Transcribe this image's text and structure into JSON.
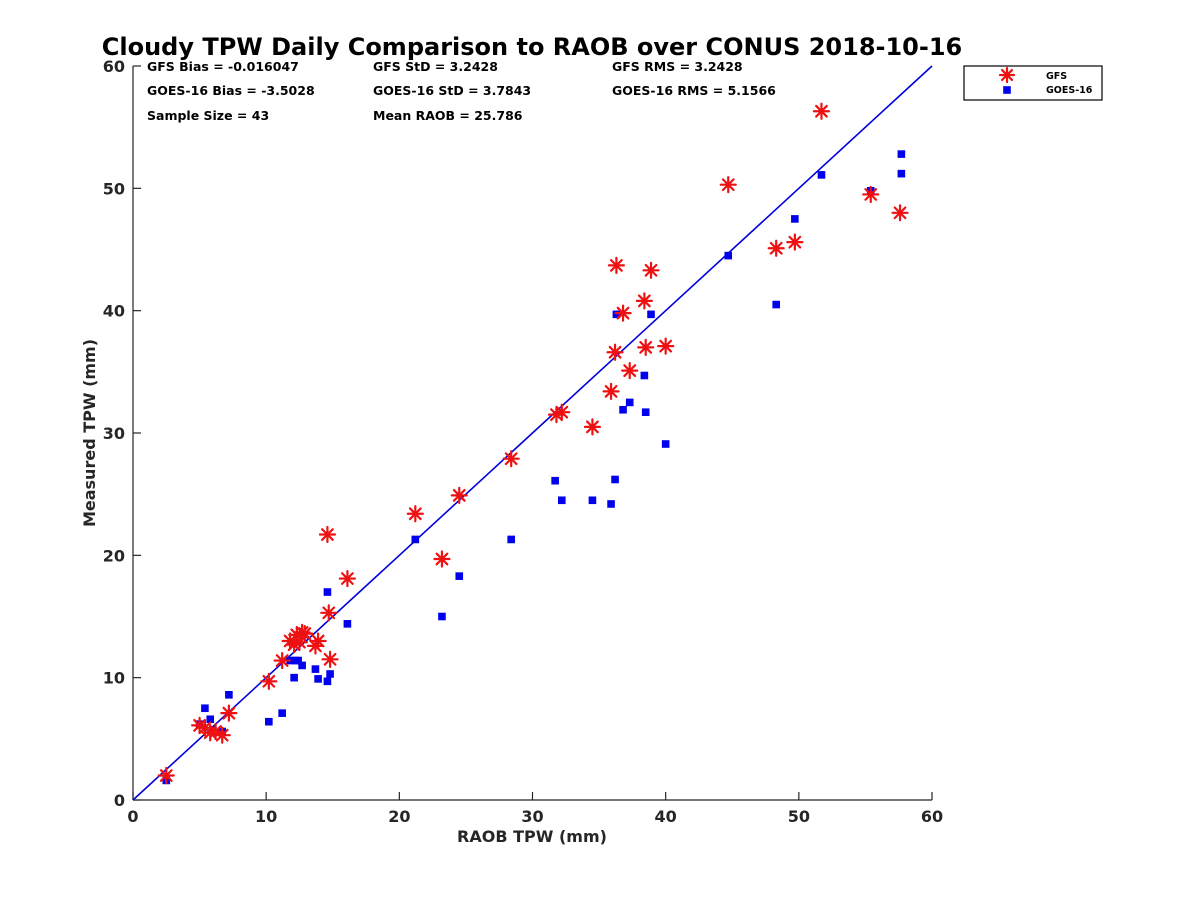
{
  "chart_data": {
    "type": "scatter",
    "title": "Cloudy TPW Daily Comparison to RAOB over CONUS 2018-10-16",
    "xlabel": "RAOB TPW (mm)",
    "ylabel": "Measured TPW (mm)",
    "xlim": [
      0,
      60
    ],
    "ylim": [
      0,
      60
    ],
    "xticks": [
      "0",
      "10",
      "20",
      "30",
      "40",
      "50",
      "60"
    ],
    "yticks": [
      "0",
      "10",
      "20",
      "30",
      "40",
      "50",
      "60"
    ],
    "grid": false,
    "legend_position": "outside-top-right",
    "reference_line": {
      "x": [
        0,
        60
      ],
      "y": [
        0,
        60
      ],
      "color": "#0000dd"
    },
    "stats": [
      "GFS Bias = -0.016047",
      "GFS StD = 3.2428",
      "GFS RMS = 3.2428",
      "GOES-16 Bias = -3.5028",
      "GOES-16 StD = 3.7843",
      "GOES-16 RMS = 5.1566",
      "Sample Size = 43",
      "Mean RAOB = 25.786"
    ],
    "series": [
      {
        "name": "GFS",
        "marker": "asterisk",
        "color": "#ee1111",
        "x": [
          2.5,
          5.0,
          5.4,
          5.8,
          6.2,
          6.7,
          7.2,
          10.2,
          11.2,
          11.8,
          12.1,
          12.3,
          12.5,
          12.7,
          12.9,
          13.7,
          13.9,
          14.6,
          14.7,
          14.8,
          16.1,
          21.2,
          23.2,
          24.5,
          28.4,
          31.8,
          32.2,
          34.5,
          35.9,
          36.2,
          36.3,
          36.8,
          37.3,
          38.4,
          38.5,
          38.9,
          40.0,
          44.7,
          48.3,
          49.7,
          51.7,
          55.4,
          57.6
        ],
        "y": [
          2.0,
          6.1,
          5.9,
          5.5,
          5.6,
          5.3,
          7.1,
          9.7,
          11.4,
          13.0,
          12.7,
          13.5,
          12.9,
          13.7,
          13.6,
          12.6,
          13.0,
          21.7,
          15.3,
          11.5,
          18.1,
          23.4,
          19.7,
          24.9,
          27.9,
          31.5,
          31.7,
          30.5,
          33.4,
          36.6,
          43.7,
          39.8,
          35.1,
          40.8,
          37.0,
          43.3,
          37.1,
          50.3,
          45.1,
          45.6,
          56.3,
          49.5,
          48.0
        ]
      },
      {
        "name": "GOES-16",
        "marker": "square",
        "color": "#0000ee",
        "x": [
          2.5,
          5.0,
          5.4,
          5.8,
          6.0,
          6.7,
          7.2,
          10.2,
          11.2,
          11.8,
          12.1,
          12.2,
          12.4,
          12.7,
          13.7,
          13.9,
          14.6,
          14.6,
          14.8,
          16.1,
          21.2,
          23.2,
          24.5,
          28.4,
          31.7,
          32.2,
          34.5,
          35.9,
          36.2,
          36.3,
          36.8,
          37.3,
          38.4,
          38.5,
          38.9,
          40.0,
          44.7,
          48.3,
          49.7,
          51.7,
          55.4,
          57.7,
          57.7
        ],
        "y": [
          1.6,
          6.2,
          7.5,
          6.6,
          5.7,
          5.6,
          8.6,
          6.4,
          7.1,
          11.4,
          10.0,
          11.4,
          11.4,
          11.0,
          10.7,
          9.9,
          17.0,
          9.7,
          10.3,
          14.4,
          21.3,
          15.0,
          18.3,
          21.3,
          26.1,
          24.5,
          24.5,
          24.2,
          26.2,
          39.7,
          31.9,
          32.5,
          34.7,
          31.7,
          39.7,
          29.1,
          44.5,
          40.5,
          47.5,
          51.1,
          49.8,
          52.8,
          51.2
        ]
      }
    ]
  }
}
